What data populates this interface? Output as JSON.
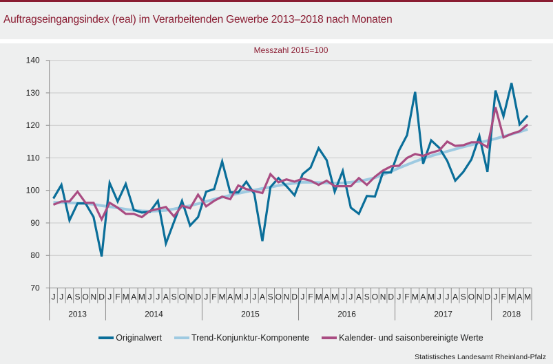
{
  "header": {
    "title": "Auftragseingangsindex (real) im Verarbeitenden Gewerbe 2013–2018 nach Monaten",
    "subtitle": "Messzahl 2015=100"
  },
  "footer": {
    "source": "Statistisches Landesamt Rheinland-Pfalz"
  },
  "colors": {
    "brand": "#8a1c32",
    "original": "#0a6e99",
    "trend": "#9ecae1",
    "adjusted": "#a94c82",
    "grid": "#c8c8c8",
    "axis": "#888888"
  },
  "chart_data": {
    "type": "line",
    "title": "Auftragseingangsindex (real) im Verarbeitenden Gewerbe 2013–2018 nach Monaten",
    "subtitle": "Messzahl 2015=100",
    "xlabel": "",
    "ylabel": "",
    "ylim": [
      70,
      140
    ],
    "yticks": [
      70,
      80,
      90,
      100,
      110,
      120,
      130,
      140
    ],
    "grid": true,
    "legend_position": "bottom",
    "month_labels": [
      "J",
      "J",
      "A",
      "S",
      "O",
      "N",
      "D",
      "J",
      "F",
      "M",
      "A",
      "M",
      "J",
      "J",
      "A",
      "S",
      "O",
      "N",
      "D",
      "J",
      "F",
      "M",
      "A",
      "M",
      "J",
      "J",
      "A",
      "S",
      "O",
      "N",
      "D",
      "J",
      "F",
      "M",
      "A",
      "M",
      "J",
      "J",
      "A",
      "S",
      "O",
      "N",
      "D",
      "J",
      "F",
      "M",
      "A",
      "M",
      "J",
      "J",
      "A",
      "S",
      "O",
      "N",
      "D",
      "J",
      "F",
      "M",
      "A",
      "M"
    ],
    "years": [
      {
        "label": "2013",
        "months": 7
      },
      {
        "label": "2014",
        "months": 12
      },
      {
        "label": "2015",
        "months": 12
      },
      {
        "label": "2016",
        "months": 12
      },
      {
        "label": "2017",
        "months": 12
      },
      {
        "label": "2018",
        "months": 5
      }
    ],
    "x_range": [
      "2013-06",
      "2018-05"
    ],
    "series": [
      {
        "name": "Originalwert",
        "color": "#0a6e99",
        "values": [
          97.5,
          101.7,
          90.8,
          96.0,
          96.0,
          91.8,
          79.7,
          102.3,
          96.6,
          102.0,
          94.0,
          93.2,
          93.4,
          96.8,
          83.7,
          90.3,
          96.8,
          89.2,
          91.8,
          99.6,
          100.4,
          108.9,
          99.4,
          99.4,
          102.7,
          98.9,
          84.4,
          101.0,
          103.8,
          101.3,
          98.5,
          105.0,
          107.0,
          113.0,
          109.3,
          99.6,
          106.0,
          94.7,
          92.8,
          98.3,
          98.1,
          105.5,
          105.5,
          112.3,
          117.0,
          130.3,
          108.2,
          115.4,
          113.1,
          109.1,
          103.0,
          105.7,
          109.5,
          116.7,
          105.7,
          130.7,
          122.8,
          133.0,
          120.3,
          123.0
        ]
      },
      {
        "name": "Trend-Konjunktur-Komponente",
        "color": "#9ecae1",
        "values": [
          96.3,
          96.3,
          96.2,
          96.1,
          96.0,
          95.7,
          95.3,
          95.0,
          94.6,
          94.2,
          93.9,
          93.7,
          93.6,
          93.7,
          93.9,
          94.3,
          94.8,
          95.3,
          95.9,
          96.6,
          97.3,
          97.9,
          98.5,
          99.1,
          99.6,
          100.1,
          100.6,
          101.0,
          101.5,
          101.9,
          102.2,
          102.5,
          102.5,
          102.4,
          102.3,
          102.2,
          102.3,
          102.5,
          102.8,
          103.3,
          103.9,
          104.8,
          105.8,
          106.9,
          107.9,
          108.9,
          109.8,
          110.6,
          111.3,
          112.0,
          112.7,
          113.4,
          114.0,
          114.7,
          115.3,
          115.9,
          116.6,
          117.3,
          118.0,
          118.8
        ]
      },
      {
        "name": "Kalender- und saisonbereinigte Werte",
        "color": "#a94c82",
        "values": [
          95.6,
          96.6,
          96.6,
          99.6,
          96.2,
          96.2,
          91.1,
          96.2,
          94.7,
          92.8,
          92.8,
          91.8,
          93.7,
          94.3,
          94.9,
          92.0,
          95.3,
          94.5,
          98.7,
          95.1,
          96.8,
          98.1,
          97.3,
          101.5,
          100.4,
          99.8,
          99.2,
          105.0,
          102.5,
          103.4,
          102.7,
          103.6,
          103.0,
          101.7,
          103.0,
          101.3,
          101.3,
          101.3,
          103.8,
          101.7,
          104.2,
          106.1,
          107.4,
          107.6,
          110.0,
          111.2,
          110.6,
          111.6,
          112.3,
          115.0,
          113.7,
          113.9,
          114.8,
          114.8,
          113.3,
          125.6,
          116.3,
          117.4,
          118.2,
          120.3
        ]
      }
    ]
  }
}
